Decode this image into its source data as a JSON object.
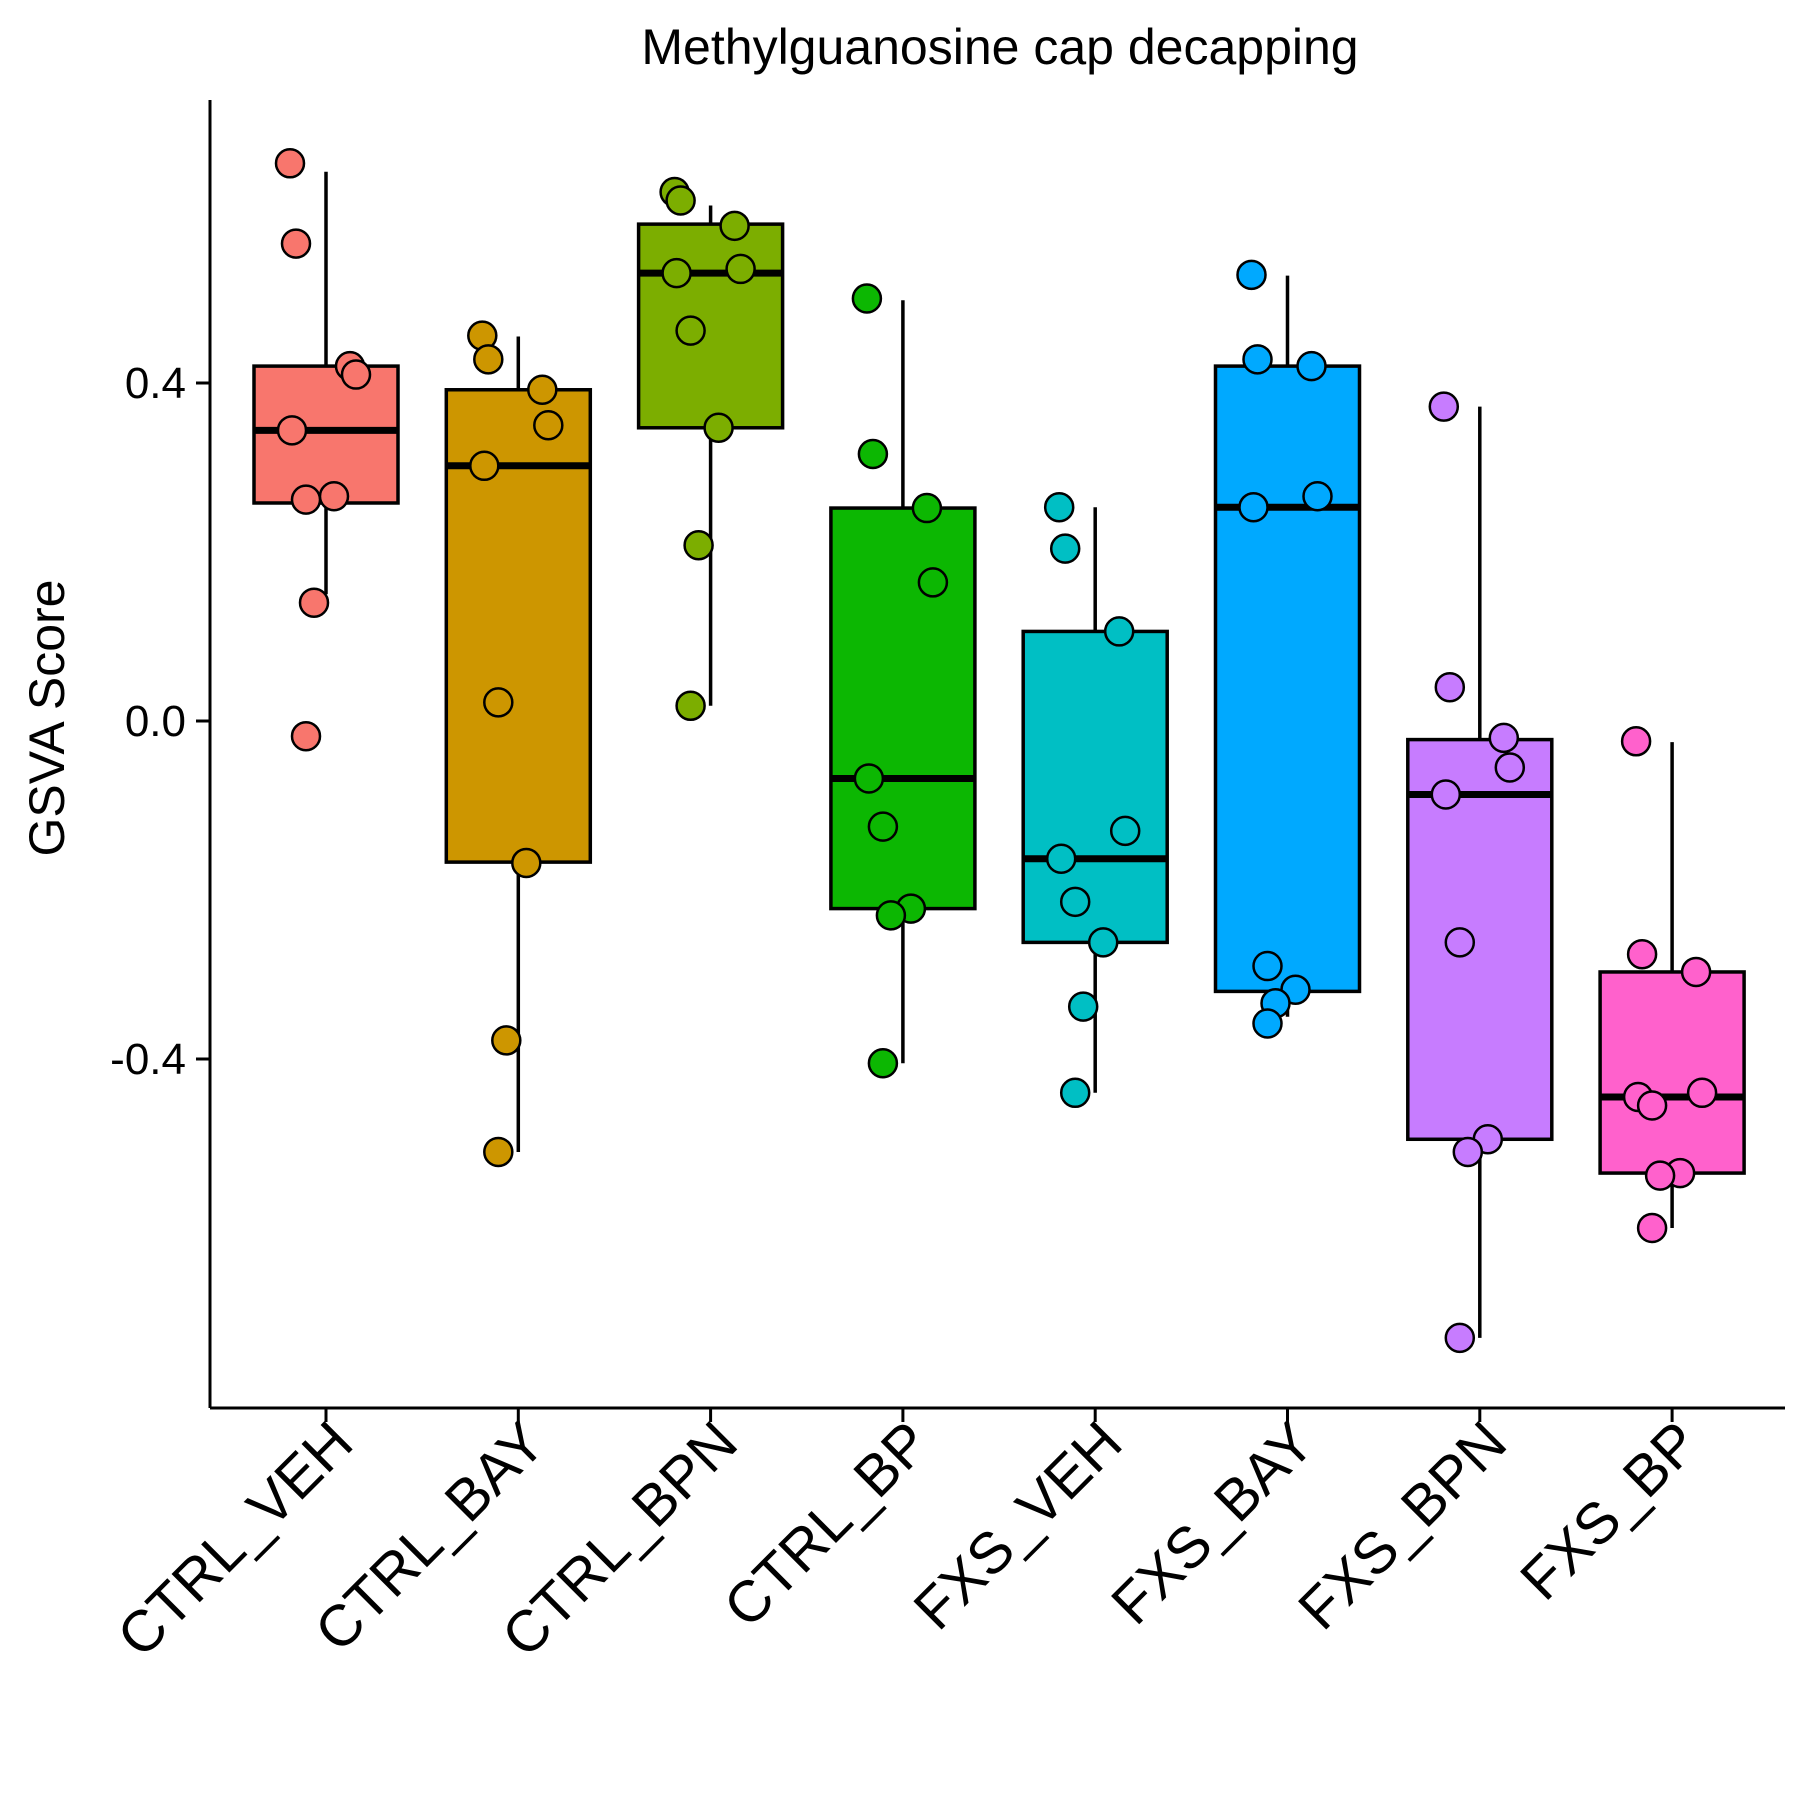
{
  "chart_data": {
    "type": "box",
    "title": "Methylguanosine cap decapping",
    "xlabel": "",
    "ylabel": "GSVA Score",
    "ylim": [
      -0.8,
      0.72
    ],
    "yticks": [
      0.4,
      0.0,
      -0.4
    ],
    "ytick_labels": [
      "0.4",
      "0.0",
      "-0.4"
    ],
    "grid": false,
    "legend": "none",
    "categories": [
      "CTRL_VEH",
      "CTRL_BAY",
      "CTRL_BPN",
      "CTRL_BP",
      "FXS_VEH",
      "FXS_BAY",
      "FXS_BPN",
      "FXS_BP"
    ],
    "groups": [
      {
        "name": "CTRL_VEH",
        "color": "#F8766D",
        "box": {
          "q1": 0.258,
          "median": 0.344,
          "q3": 0.42,
          "whisker_low": 0.15,
          "whisker_high": 0.65
        },
        "points": [
          0.66,
          0.565,
          0.42,
          0.41,
          0.344,
          0.262,
          0.266,
          0.14,
          -0.018
        ]
      },
      {
        "name": "CTRL_BAY",
        "color": "#CD9600",
        "box": {
          "q1": -0.167,
          "median": 0.302,
          "q3": 0.392,
          "whisker_low": -0.51,
          "whisker_high": 0.455
        },
        "points": [
          0.456,
          0.428,
          0.392,
          0.35,
          0.302,
          0.022,
          -0.168,
          -0.378,
          -0.51
        ]
      },
      {
        "name": "CTRL_BPN",
        "color": "#7CAE00",
        "box": {
          "q1": 0.347,
          "median": 0.53,
          "q3": 0.588,
          "whisker_low": 0.018,
          "whisker_high": 0.61
        },
        "points": [
          0.626,
          0.616,
          0.586,
          0.535,
          0.53,
          0.462,
          0.347,
          0.208,
          0.018
        ]
      },
      {
        "name": "CTRL_BP",
        "color": "#0CB702",
        "box": {
          "q1": -0.222,
          "median": -0.068,
          "q3": 0.252,
          "whisker_low": -0.405,
          "whisker_high": 0.498
        },
        "points": [
          0.5,
          0.316,
          0.252,
          0.164,
          -0.068,
          -0.125,
          -0.222,
          -0.23,
          -0.405
        ]
      },
      {
        "name": "FXS_VEH",
        "color": "#00BFC4",
        "box": {
          "q1": -0.262,
          "median": -0.163,
          "q3": 0.106,
          "whisker_low": -0.44,
          "whisker_high": 0.253
        },
        "points": [
          0.253,
          0.204,
          0.106,
          -0.13,
          -0.163,
          -0.214,
          -0.262,
          -0.338,
          -0.44
        ]
      },
      {
        "name": "FXS_BAY",
        "color": "#00A9FF",
        "box": {
          "q1": -0.32,
          "median": 0.253,
          "q3": 0.42,
          "whisker_low": -0.35,
          "whisker_high": 0.527
        },
        "points": [
          0.528,
          0.428,
          0.42,
          0.266,
          0.253,
          -0.29,
          -0.318,
          -0.334,
          -0.358
        ]
      },
      {
        "name": "FXS_BPN",
        "color": "#C77CFF",
        "box": {
          "q1": -0.495,
          "median": -0.087,
          "q3": -0.022,
          "whisker_low": -0.73,
          "whisker_high": 0.372
        },
        "points": [
          0.372,
          0.04,
          -0.02,
          -0.055,
          -0.087,
          -0.262,
          -0.495,
          -0.51,
          -0.73
        ]
      },
      {
        "name": "FXS_BP",
        "color": "#FF61CC",
        "box": {
          "q1": -0.535,
          "median": -0.445,
          "q3": -0.297,
          "whisker_low": -0.6,
          "whisker_high": -0.025
        },
        "points": [
          -0.024,
          -0.276,
          -0.297,
          -0.44,
          -0.445,
          -0.455,
          -0.535,
          -0.538,
          -0.6
        ]
      }
    ]
  }
}
